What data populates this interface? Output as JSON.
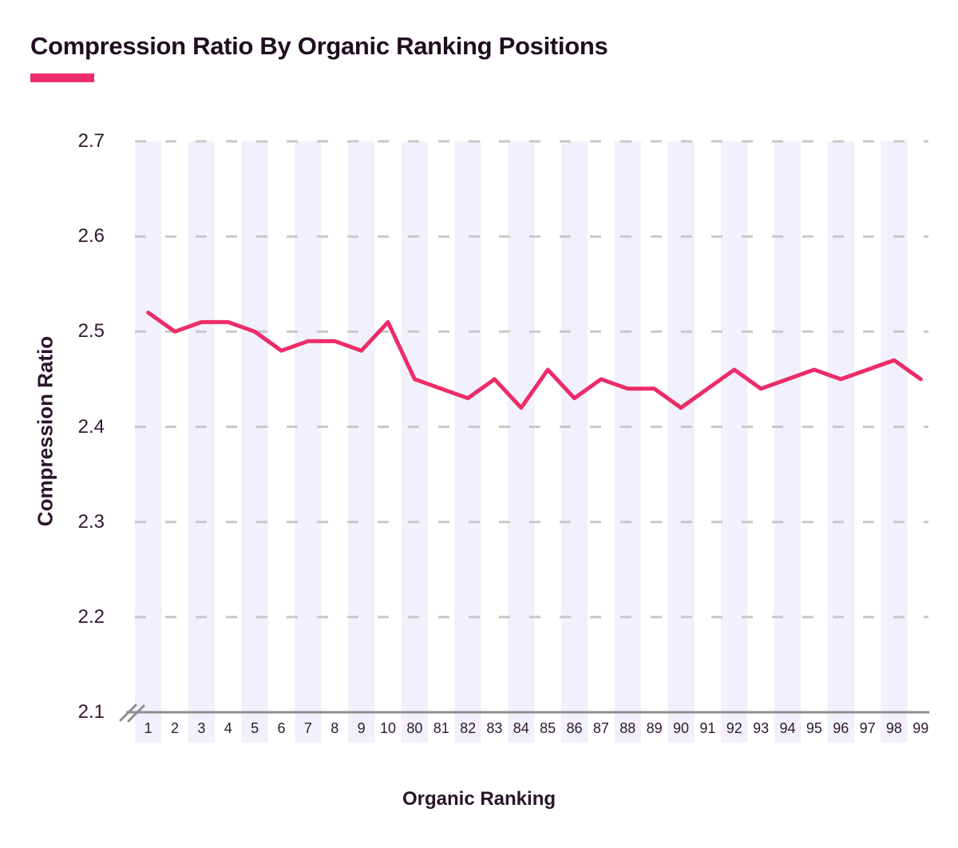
{
  "page": {
    "title": "Compression Ratio By Organic Ranking Positions"
  },
  "chart_data": {
    "type": "line",
    "title": "Compression Ratio By Organic Ranking Positions",
    "xlabel": "Organic Ranking",
    "ylabel": "Compression Ratio",
    "categories": [
      "1",
      "2",
      "3",
      "4",
      "5",
      "6",
      "7",
      "8",
      "9",
      "10",
      "80",
      "81",
      "82",
      "83",
      "84",
      "85",
      "86",
      "87",
      "88",
      "89",
      "90",
      "91",
      "92",
      "93",
      "94",
      "95",
      "96",
      "97",
      "98",
      "99"
    ],
    "values": [
      2.52,
      2.5,
      2.51,
      2.51,
      2.5,
      2.48,
      2.49,
      2.49,
      2.48,
      2.51,
      2.45,
      2.44,
      2.43,
      2.45,
      2.42,
      2.46,
      2.43,
      2.45,
      2.44,
      2.44,
      2.42,
      2.44,
      2.46,
      2.44,
      2.45,
      2.46,
      2.45,
      2.46,
      2.47,
      2.45
    ],
    "ylim": [
      2.1,
      2.7
    ],
    "ytick_labels": [
      "2.7",
      "2.6",
      "2.5",
      "2.4",
      "2.3",
      "2.2",
      "2.1"
    ],
    "ytick_values": [
      2.7,
      2.6,
      2.5,
      2.4,
      2.3,
      2.2,
      2.1
    ],
    "y_axis_break": true,
    "grid": "horizontal-dashed",
    "legend": "none",
    "colors": {
      "line": "#ec2c68",
      "accent_bar": "#ec2d6b",
      "band": "#f2f1fb",
      "grid": "#c8c8c8",
      "axis": "#8f8f8f",
      "title_text": "#200c20",
      "tick_text": "#301830"
    }
  }
}
